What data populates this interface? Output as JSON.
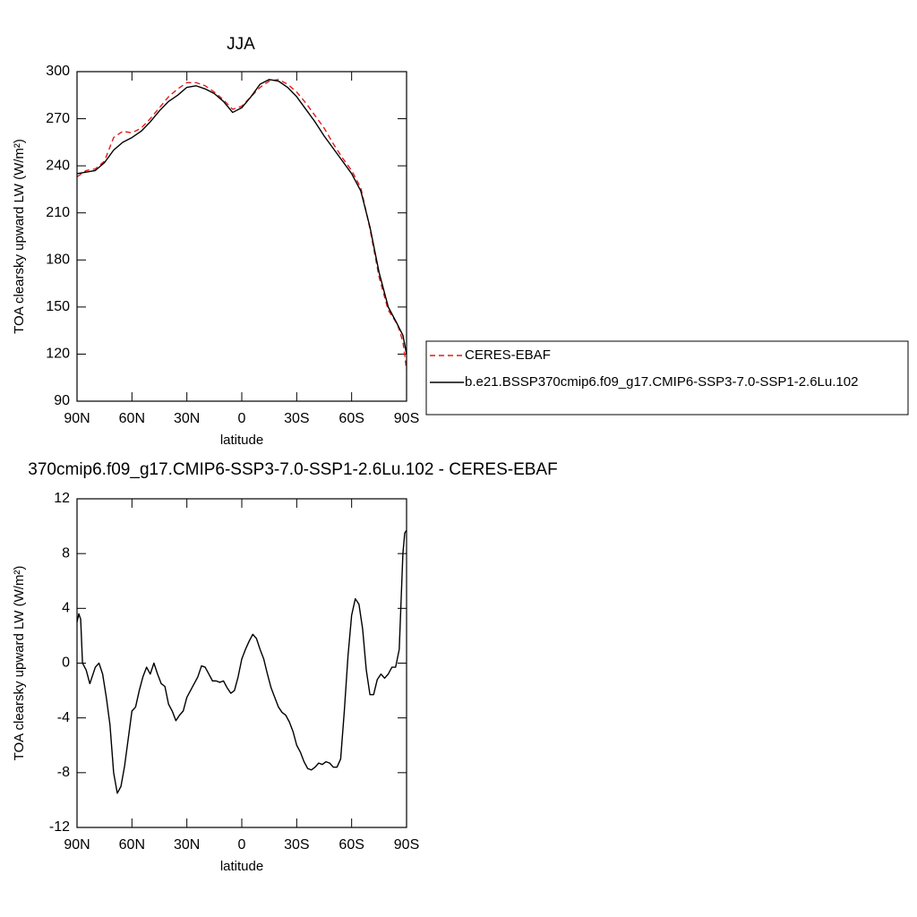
{
  "chart_data": [
    {
      "type": "line",
      "title": "JJA",
      "xlabel": "latitude",
      "ylabel": "TOA clearsky upward LW (W/m²)",
      "x": [
        90,
        85,
        80,
        75,
        70,
        65,
        60,
        55,
        50,
        45,
        40,
        35,
        30,
        25,
        20,
        15,
        10,
        5,
        0,
        -5,
        -10,
        -15,
        -20,
        -25,
        -30,
        -35,
        -40,
        -45,
        -50,
        -55,
        -60,
        -65,
        -70,
        -75,
        -80,
        -85,
        -88,
        -90
      ],
      "series": [
        {
          "name": "CERES-EBAF",
          "color": "#e31a1c",
          "line_style": "dashed",
          "values": [
            233,
            237,
            238,
            243,
            258,
            262,
            261,
            264,
            270,
            277,
            284,
            289,
            293,
            293,
            291,
            287,
            282,
            276,
            278,
            284,
            290,
            294,
            295,
            292,
            287,
            280,
            272,
            264,
            254,
            245,
            237,
            226,
            200,
            169,
            148,
            139,
            128,
            110
          ]
        },
        {
          "name": "b.e21.BSSP370cmip6.f09_g17.CMIP6-SSP3-7.0-SSP1-2.6Lu.102",
          "color": "#000000",
          "line_style": "solid",
          "values": [
            235,
            236,
            237,
            242,
            250,
            255,
            258,
            262,
            268,
            275,
            281,
            285,
            290,
            291,
            289,
            286,
            281,
            274,
            277,
            284,
            292,
            295,
            294,
            290,
            284,
            276,
            268,
            259,
            251,
            243,
            235,
            224,
            201,
            172,
            150,
            139,
            132,
            120
          ]
        }
      ],
      "xlim": [
        90,
        -90
      ],
      "xticks": [
        {
          "value": 90,
          "label": "90N"
        },
        {
          "value": 60,
          "label": "60N"
        },
        {
          "value": 30,
          "label": "30N"
        },
        0,
        {
          "value": -30,
          "label": "30S"
        },
        {
          "value": -60,
          "label": "60S"
        },
        {
          "value": -90,
          "label": "90S"
        }
      ],
      "ylim": [
        90,
        300
      ],
      "yticks": [
        90,
        120,
        150,
        180,
        210,
        240,
        270,
        300
      ],
      "legend": "outside-right"
    },
    {
      "type": "line",
      "title": "370cmip6.f09_g17.CMIP6-SSP3-7.0-SSP1-2.6Lu.102 - CERES-EBAF",
      "xlabel": "latitude",
      "ylabel": "TOA clearsky upward LW (W/m²)",
      "x": [
        90,
        89,
        88,
        87,
        85,
        83,
        80,
        78,
        76,
        74,
        72,
        70,
        68,
        66,
        64,
        62,
        60,
        58,
        56,
        54,
        52,
        50,
        48,
        46,
        44,
        42,
        40,
        38,
        36,
        34,
        32,
        30,
        28,
        26,
        24,
        22,
        20,
        18,
        16,
        14,
        12,
        10,
        8,
        6,
        4,
        2,
        0,
        -2,
        -4,
        -6,
        -8,
        -10,
        -12,
        -14,
        -16,
        -18,
        -20,
        -22,
        -24,
        -26,
        -28,
        -30,
        -32,
        -34,
        -36,
        -38,
        -40,
        -42,
        -44,
        -46,
        -48,
        -50,
        -52,
        -54,
        -56,
        -58,
        -60,
        -62,
        -64,
        -66,
        -68,
        -70,
        -72,
        -74,
        -76,
        -78,
        -80,
        -82,
        -84,
        -86,
        -88,
        -89,
        -90
      ],
      "series": [
        {
          "color": "#000000",
          "values": [
            3,
            3.6,
            3.2,
            0,
            -0.5,
            -1.5,
            -0.3,
            0,
            -0.8,
            -2.5,
            -4.5,
            -8,
            -9.5,
            -9,
            -7.5,
            -5.5,
            -3.5,
            -3.2,
            -2,
            -1,
            -0.3,
            -0.8,
            0,
            -0.8,
            -1.5,
            -1.7,
            -3,
            -3.5,
            -4.2,
            -3.8,
            -3.5,
            -2.5,
            -2,
            -1.5,
            -1,
            -0.2,
            -0.3,
            -0.8,
            -1.3,
            -1.3,
            -1.4,
            -1.3,
            -1.8,
            -2.2,
            -2,
            -1,
            0.3,
            1,
            1.6,
            2.1,
            1.8,
            1,
            0.3,
            -0.8,
            -1.8,
            -2.5,
            -3.2,
            -3.6,
            -3.8,
            -4.3,
            -5,
            -6,
            -6.5,
            -7.2,
            -7.7,
            -7.8,
            -7.6,
            -7.3,
            -7.4,
            -7.2,
            -7.3,
            -7.6,
            -7.6,
            -7,
            -3.5,
            0.5,
            3.5,
            4.7,
            4.3,
            2.5,
            -0.5,
            -2.3,
            -2.3,
            -1.2,
            -0.8,
            -1.1,
            -0.8,
            -0.3,
            -0.3,
            1,
            8,
            9.5,
            9.7
          ]
        }
      ],
      "xlim": [
        90,
        -90
      ],
      "xticks": [
        {
          "value": 90,
          "label": "90N"
        },
        {
          "value": 60,
          "label": "60N"
        },
        {
          "value": 30,
          "label": "30N"
        },
        0,
        {
          "value": -30,
          "label": "30S"
        },
        {
          "value": -60,
          "label": "60S"
        },
        {
          "value": -90,
          "label": "90S"
        }
      ],
      "ylim": [
        -12,
        12
      ],
      "yticks": [
        -12,
        -8,
        -4,
        0,
        4,
        8,
        12
      ]
    }
  ]
}
